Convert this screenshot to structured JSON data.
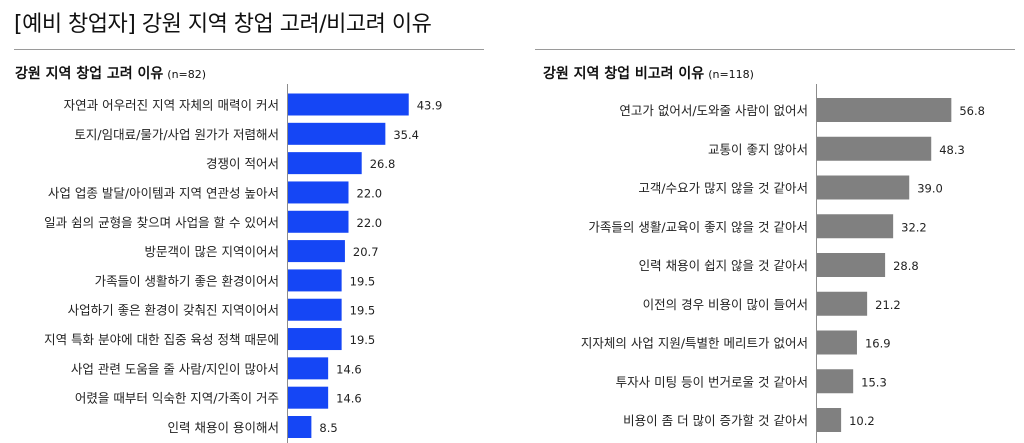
{
  "page": {
    "title": "[예비 창업자] 강원 지역 창업 고려/비고려 이유"
  },
  "chart_data": [
    {
      "type": "bar",
      "orientation": "horizontal",
      "title": "강원 지역 창업 고려 이유",
      "sample": "(n=82)",
      "color": "#1546f5",
      "categories": [
        "자연과 어우러진 지역 자체의 매력이 커서",
        "토지/임대료/물가/사업 원가가 저렴해서",
        "경쟁이 적어서",
        "사업 업종 발달/아이템과 지역 연관성 높아서",
        "일과 쉼의 균형을 찾으며 사업을 할 수 있어서",
        "방문객이 많은 지역이어서",
        "가족들이 생활하기 좋은 환경이어서",
        "사업하기 좋은 환경이 갖춰진 지역이어서",
        "지역 특화 분야에 대한 집중 육성 정책 때문에",
        "사업 관련 도움을 줄 사람/지인이 많아서",
        "어렸을 때부터 익숙한 지역/가족이 거주",
        "인력 채용이 용이해서"
      ],
      "values": [
        43.9,
        35.4,
        26.8,
        22.0,
        22.0,
        20.7,
        19.5,
        19.5,
        19.5,
        14.6,
        14.6,
        8.5
      ],
      "value_labels": [
        "43.9",
        "35.4",
        "26.8",
        "22.0",
        "22.0",
        "20.7",
        "19.5",
        "19.5",
        "19.5",
        "14.6",
        "14.6",
        "8.5"
      ]
    },
    {
      "type": "bar",
      "orientation": "horizontal",
      "title": "강원 지역 창업 비고려 이유",
      "sample": "(n=118)",
      "color": "#808080",
      "categories": [
        "연고가 없어서/도와줄 사람이 없어서",
        "교통이 좋지 않아서",
        "고객/수요가 많지 않을 것 같아서",
        "가족들의 생활/교육이 좋지 않을 것 같아서",
        "인력 채용이 쉽지 않을 것 같아서",
        "이전의 경우 비용이 많이 들어서",
        "지자체의 사업 지원/특별한 메리트가 없어서",
        "투자사 미팅 등이 번거로울 것 같아서",
        "비용이 좀 더 많이 증가할 것 같아서"
      ],
      "values": [
        56.8,
        48.3,
        39.0,
        32.2,
        28.8,
        21.2,
        16.9,
        15.3,
        10.2
      ],
      "value_labels": [
        "56.8",
        "48.3",
        "39.0",
        "32.2",
        "28.8",
        "21.2",
        "16.9",
        "15.3",
        "10.2"
      ]
    }
  ]
}
